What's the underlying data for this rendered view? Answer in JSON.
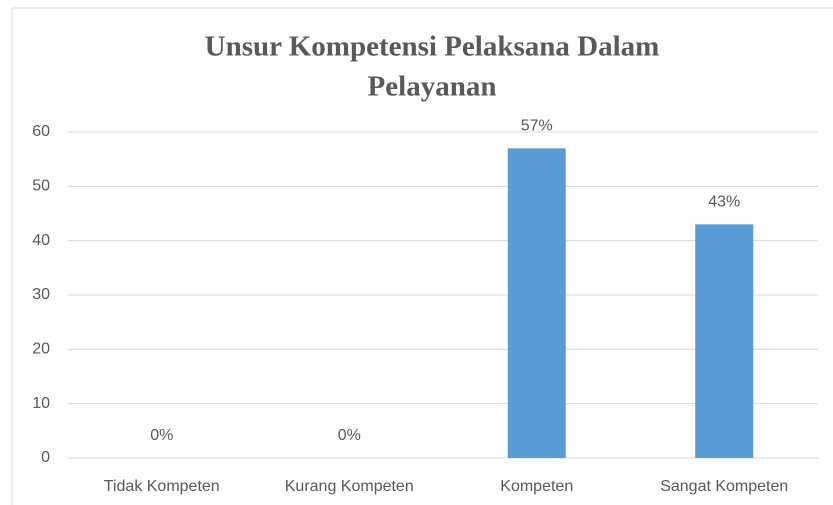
{
  "chart_data": {
    "type": "bar",
    "title": [
      "Unsur Kompetensi Pelaksana  Dalam",
      "Pelayanan"
    ],
    "categories": [
      "Tidak Kompeten",
      "Kurang Kompeten",
      "Kompeten",
      "Sangat Kompeten"
    ],
    "values": [
      0,
      0,
      57,
      43
    ],
    "value_labels": [
      "0%",
      "0%",
      "57%",
      "43%"
    ],
    "color": "#5b9bd5",
    "ylim": [
      0,
      60
    ],
    "yticks": [
      0,
      10,
      20,
      30,
      40,
      50,
      60
    ],
    "grid": true
  }
}
